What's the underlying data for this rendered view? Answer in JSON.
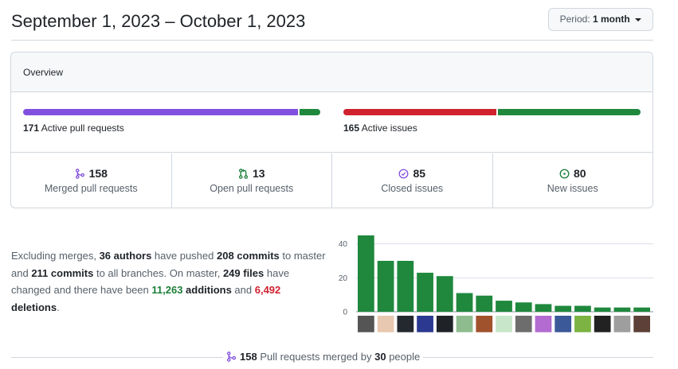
{
  "header": {
    "title": "September 1, 2023 – October 1, 2023",
    "period_prefix": "Period:",
    "period_value": "1 month"
  },
  "overview": {
    "title": "Overview",
    "pull_requests_bar": {
      "count": "171",
      "label": "Active pull requests",
      "merged_fraction": 0.924,
      "colors": [
        "#8250df",
        "#1f883d"
      ]
    },
    "issues_bar": {
      "count": "165",
      "label": "Active issues",
      "closed_fraction": 0.515,
      "colors": [
        "#cf222e",
        "#1f883d"
      ]
    },
    "stats": [
      {
        "icon": "git-merge-icon",
        "value": "158",
        "label": "Merged pull requests",
        "color": "#8250df"
      },
      {
        "icon": "git-pull-request-icon",
        "value": "13",
        "label": "Open pull requests",
        "color": "#1a7f37"
      },
      {
        "icon": "issue-closed-icon",
        "value": "85",
        "label": "Closed issues",
        "color": "#8250df"
      },
      {
        "icon": "issue-opened-icon",
        "value": "80",
        "label": "New issues",
        "color": "#1a7f37"
      }
    ]
  },
  "summary": {
    "t1": "Excluding merges, ",
    "authors": "36 authors",
    "t2": " have pushed ",
    "commits_master": "208 commits",
    "t3": " to master and ",
    "commits_all": "211 commits",
    "t4": " to all branches. On master, ",
    "files": "249 files",
    "t5": " have changed and there have been ",
    "additions_num": "11,263",
    "additions_word": " additions",
    "t6": " and ",
    "deletions_num": "6,492",
    "deletions_word": " deletions",
    "t7": "."
  },
  "chart_data": {
    "type": "bar",
    "y_ticks": [
      "0",
      "20",
      "40"
    ],
    "ylim": [
      0,
      45
    ],
    "values": [
      47,
      30,
      30,
      23,
      21,
      11,
      9.5,
      6.5,
      5.5,
      4.5,
      3.5,
      3.5,
      2.5,
      2.5,
      2.5
    ],
    "bar_color": "#1f883d",
    "grid": true
  },
  "footer": {
    "count": "158",
    "t1": " Pull requests merged by ",
    "people": "30",
    "t2": " people"
  }
}
